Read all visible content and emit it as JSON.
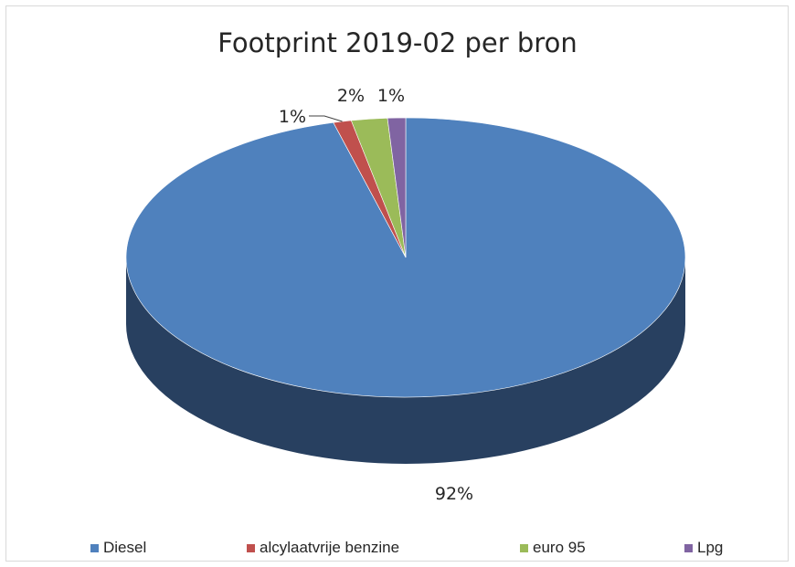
{
  "chart_data": {
    "type": "pie",
    "title": "Footprint 2019-02 per bron",
    "style": "3d",
    "legend_position": "bottom",
    "slices": [
      {
        "label": "Diesel",
        "value": 92,
        "value_label": "92%",
        "color": "#4f81bd",
        "side_color": "#284060"
      },
      {
        "label": "alcylaatvrije benzine",
        "value": 1,
        "value_label": "1%",
        "color": "#c0504d",
        "side_color": "#6b2b29"
      },
      {
        "label": "euro 95",
        "value": 2,
        "value_label": "2%",
        "color": "#9bbb59",
        "side_color": "#556a2f"
      },
      {
        "label": "Lpg",
        "value": 1,
        "value_label": "1%",
        "color": "#8064a2",
        "side_color": "#47385a"
      }
    ]
  }
}
